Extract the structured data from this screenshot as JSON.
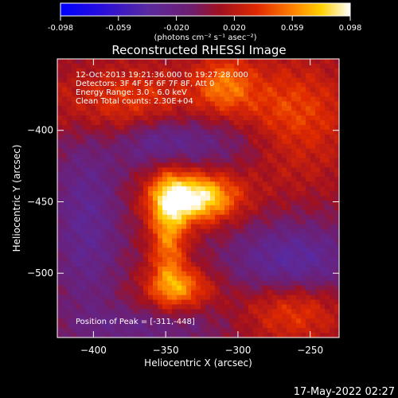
{
  "colorbar": {
    "tick_labels": [
      "-0.098",
      "-0.059",
      "-0.020",
      "0.020",
      "0.059",
      "0.098"
    ],
    "unit_label": "(photons cm⁻² s⁻¹ asec⁻²)",
    "min": -0.098,
    "max": 0.098
  },
  "info": {
    "time_range": "12-Oct-2013 19:21:36.000 to 19:27:28.000",
    "detectors": "Detectors: 3F 4F 5F 6F 7F 8F, Att 0",
    "energy": "Energy Range: 3.0 - 6.0 keV",
    "clean": "Clean     Total counts: 2.30E+04",
    "peak": "Position of Peak = [-311,-448]"
  },
  "footer_timestamp": "17-May-2022 02:27",
  "chart_data": {
    "type": "heatmap",
    "title": "Reconstructed RHESSI Image",
    "xlabel": "Heliocentric X (arcsec)",
    "ylabel": "Heliocentric Y (arcsec)",
    "xlim": [
      -425,
      -230
    ],
    "ylim": [
      -545,
      -350
    ],
    "x_ticks": [
      -400,
      -350,
      -300,
      -250
    ],
    "y_ticks": [
      -400,
      -450,
      -500
    ],
    "x_tick_labels": [
      "−400",
      "−350",
      "−300",
      "−250"
    ],
    "y_tick_labels": [
      "−400",
      "−450",
      "−500"
    ],
    "colormap": "blue-purple-red-yellow-white",
    "peak_position": [
      -311,
      -448
    ],
    "features": [
      {
        "x": -330,
        "y": -447,
        "sx": 20,
        "sy": 12,
        "value": 0.095
      },
      {
        "x": -348,
        "y": -470,
        "sx": 9,
        "sy": 30,
        "value": 0.055
      },
      {
        "x": -340,
        "y": -510,
        "sx": 16,
        "sy": 10,
        "value": 0.05
      },
      {
        "x": -265,
        "y": -395,
        "sx": 30,
        "sy": 28,
        "value": 0.045
      },
      {
        "x": -262,
        "y": -525,
        "sx": 25,
        "sy": 16,
        "value": 0.04
      },
      {
        "x": -380,
        "y": -380,
        "sx": 38,
        "sy": 18,
        "value": 0.035
      },
      {
        "x": -310,
        "y": -368,
        "sx": 14,
        "sy": 14,
        "value": 0.04
      },
      {
        "x": -405,
        "y": -465,
        "sx": 18,
        "sy": 50,
        "value": -0.035
      },
      {
        "x": -305,
        "y": -408,
        "sx": 40,
        "sy": 16,
        "value": -0.03
      },
      {
        "x": -355,
        "y": -408,
        "sx": 18,
        "sy": 12,
        "value": -0.03
      },
      {
        "x": -262,
        "y": -493,
        "sx": 32,
        "sy": 20,
        "value": -0.045
      },
      {
        "x": -360,
        "y": -538,
        "sx": 35,
        "sy": 10,
        "value": -0.025
      }
    ],
    "baseline": 0.005
  }
}
